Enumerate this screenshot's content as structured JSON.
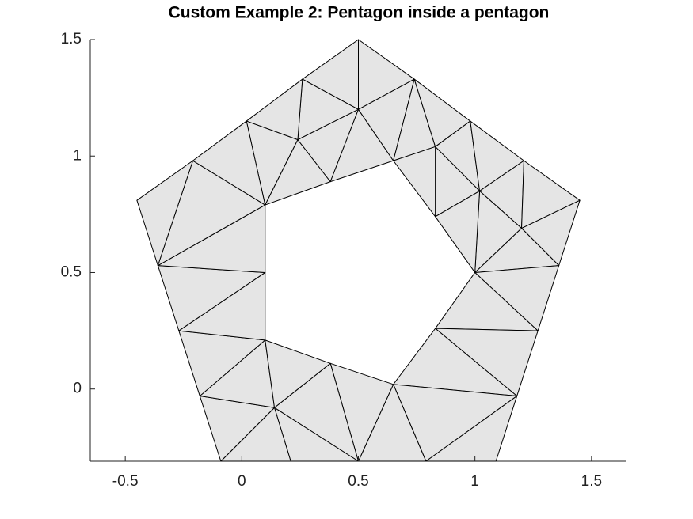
{
  "chart_data": {
    "type": "trimesh",
    "title": "Custom Example 2: Pentagon inside a pentagon",
    "x": [
      0.5,
      0.74,
      0.98,
      1.21,
      1.45,
      1.36,
      1.27,
      1.18,
      1.09,
      0.79,
      0.5,
      0.21,
      -0.09,
      -0.18,
      -0.27,
      -0.36,
      -0.45,
      -0.21,
      0.02,
      0.26,
      1,
      0.83,
      0.65,
      0.38,
      0.1,
      0.1,
      0.1,
      0.38,
      0.65,
      0.83,
      0.24,
      0.5,
      0.83,
      1.02,
      1.2,
      0.14
    ],
    "y": [
      1.5,
      1.33,
      1.15,
      0.98,
      0.81,
      0.53,
      0.25,
      -0.03,
      -0.31,
      -0.31,
      -0.31,
      -0.31,
      -0.31,
      -0.03,
      0.25,
      0.53,
      0.81,
      0.98,
      1.15,
      1.33,
      0.5,
      0.26,
      0.02,
      0.11,
      0.21,
      0.5,
      0.79,
      0.89,
      0.98,
      0.74,
      1.07,
      1.2,
      1.04,
      0.85,
      0.69,
      -0.08
    ],
    "triangles": [
      [
        0,
        19,
        31
      ],
      [
        0,
        31,
        1
      ],
      [
        19,
        30,
        31
      ],
      [
        19,
        18,
        30
      ],
      [
        18,
        30,
        26
      ],
      [
        30,
        26,
        27
      ],
      [
        30,
        31,
        27
      ],
      [
        31,
        27,
        28
      ],
      [
        31,
        28,
        1
      ],
      [
        1,
        28,
        32
      ],
      [
        1,
        32,
        2
      ],
      [
        32,
        2,
        33
      ],
      [
        32,
        33,
        29
      ],
      [
        32,
        29,
        28
      ],
      [
        2,
        3,
        33
      ],
      [
        3,
        33,
        34
      ],
      [
        3,
        4,
        34
      ],
      [
        33,
        34,
        20
      ],
      [
        33,
        29,
        20
      ],
      [
        4,
        34,
        5
      ],
      [
        34,
        5,
        20
      ],
      [
        5,
        20,
        6
      ],
      [
        6,
        20,
        21
      ],
      [
        6,
        21,
        7
      ],
      [
        21,
        7,
        22
      ],
      [
        22,
        7,
        9
      ],
      [
        7,
        8,
        9
      ],
      [
        22,
        9,
        10
      ],
      [
        22,
        10,
        23
      ],
      [
        23,
        10,
        35
      ],
      [
        35,
        10,
        11
      ],
      [
        35,
        11,
        12
      ],
      [
        12,
        35,
        13
      ],
      [
        13,
        35,
        24
      ],
      [
        35,
        24,
        23
      ],
      [
        13,
        24,
        14
      ],
      [
        14,
        24,
        25
      ],
      [
        14,
        25,
        15
      ],
      [
        15,
        25,
        26
      ],
      [
        15,
        26,
        17
      ],
      [
        17,
        26,
        18
      ],
      [
        17,
        15,
        16
      ]
    ],
    "xlim": [
      -0.65,
      1.65
    ],
    "ylim": [
      -0.31,
      1.5
    ],
    "xticks": [
      -0.5,
      0,
      0.5,
      1,
      1.5
    ],
    "yticks": [
      0,
      0.5,
      1,
      1.5
    ],
    "face_color": "#e5e5e5",
    "edge_color": "#000000"
  }
}
